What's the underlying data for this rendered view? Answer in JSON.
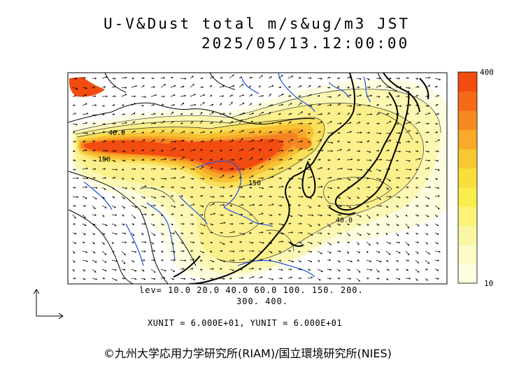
{
  "header": {
    "title": "U-V&Dust total m/s&ug/m3 JST",
    "timestamp": "2025/05/13.12:00:00"
  },
  "legend": {
    "levels_line1": "lev= 10.0 20.0 40.0 60.0 100. 150. 200.",
    "levels_line2": "300. 400.",
    "colorbar_max": "400",
    "colorbar_min": "10",
    "colors": [
      "#fdfde0",
      "#fcfcc4",
      "#fbf6a4",
      "#fbf27a",
      "#faee4c",
      "#f9de3c",
      "#f8c830",
      "#f7ab28",
      "#f68a20",
      "#f46a18",
      "#f24c10"
    ]
  },
  "map": {
    "contour_labels": [
      "40.0",
      "150",
      "150",
      "40.0"
    ],
    "coastline_color": "#000000",
    "river_color": "#1f4fe0",
    "wind_arrow_color": "#000000"
  },
  "units": "XUNIT = 6.000E+01, YUNIT = 6.000E+01",
  "credit": "©九州大学応用力学研究所(RIAM)/国立環境研究所(NIES)"
}
